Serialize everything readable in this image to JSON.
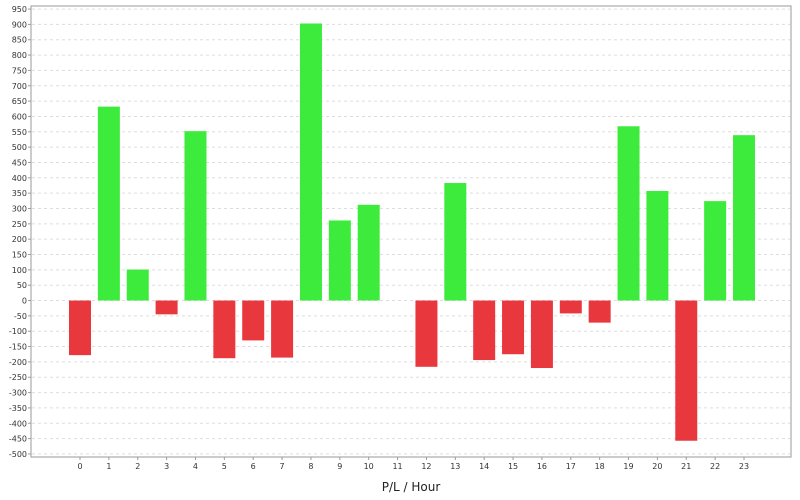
{
  "chart_data": {
    "type": "bar",
    "title": "",
    "xlabel": "P/L / Hour",
    "ylabel": "",
    "categories": [
      "0",
      "1",
      "2",
      "3",
      "4",
      "5",
      "6",
      "7",
      "8",
      "9",
      "10",
      "11",
      "12",
      "13",
      "14",
      "15",
      "16",
      "17",
      "18",
      "19",
      "20",
      "21",
      "22",
      "23"
    ],
    "values": [
      -178,
      632,
      101,
      -45,
      552,
      -188,
      -130,
      -186,
      903,
      261,
      312,
      0,
      -216,
      383,
      -194,
      -175,
      -220,
      -42,
      -72,
      568,
      357,
      -457,
      324,
      539
    ],
    "ylim": [
      -510,
      960
    ],
    "yticks": [
      -500,
      -450,
      -400,
      -350,
      -300,
      -250,
      -200,
      -150,
      -100,
      -50,
      0,
      50,
      100,
      150,
      200,
      250,
      300,
      350,
      400,
      450,
      500,
      550,
      600,
      650,
      700,
      750,
      800,
      850,
      900,
      950
    ],
    "grid": true,
    "colors": {
      "positive": "#3deb3d",
      "negative": "#e8383d",
      "grid": "#dddddd",
      "frame": "#9a9a9a"
    }
  }
}
